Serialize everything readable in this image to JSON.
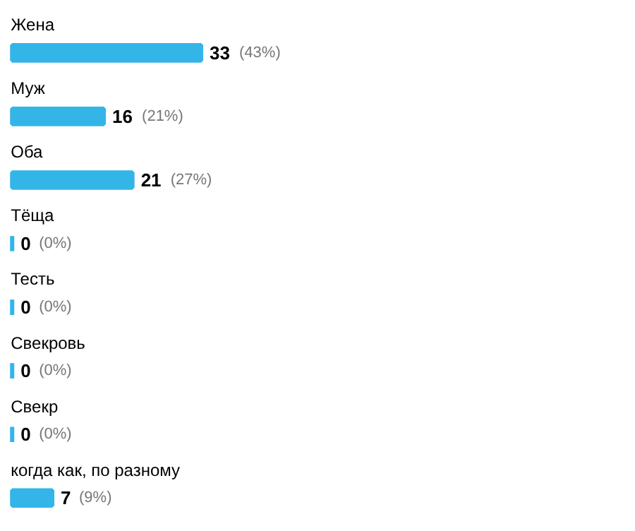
{
  "chart_data": {
    "type": "bar",
    "orientation": "horizontal",
    "categories": [
      "Жена",
      "Муж",
      "Оба",
      "Тёща",
      "Тесть",
      "Свекровь",
      "Свекр",
      "когда как, по разному"
    ],
    "values": [
      33,
      16,
      21,
      0,
      0,
      0,
      0,
      7
    ],
    "color": "#33b5e8",
    "data_labels": true,
    "annotations": [
      {
        "text": "(43%)",
        "x": 33,
        "y": "Жена"
      },
      {
        "text": "(21%)",
        "x": 16,
        "y": "Муж"
      },
      {
        "text": "(27%)",
        "x": 21,
        "y": "Оба"
      },
      {
        "text": "(0%)",
        "x": 0,
        "y": "Тёща"
      },
      {
        "text": "(0%)",
        "x": 0,
        "y": "Тесть"
      },
      {
        "text": "(0%)",
        "x": 0,
        "y": "Свекровь"
      },
      {
        "text": "(0%)",
        "x": 0,
        "y": "Свекр"
      },
      {
        "text": "(9%)",
        "x": 7,
        "y": "когда как, по разному"
      }
    ],
    "grid": false
  }
}
